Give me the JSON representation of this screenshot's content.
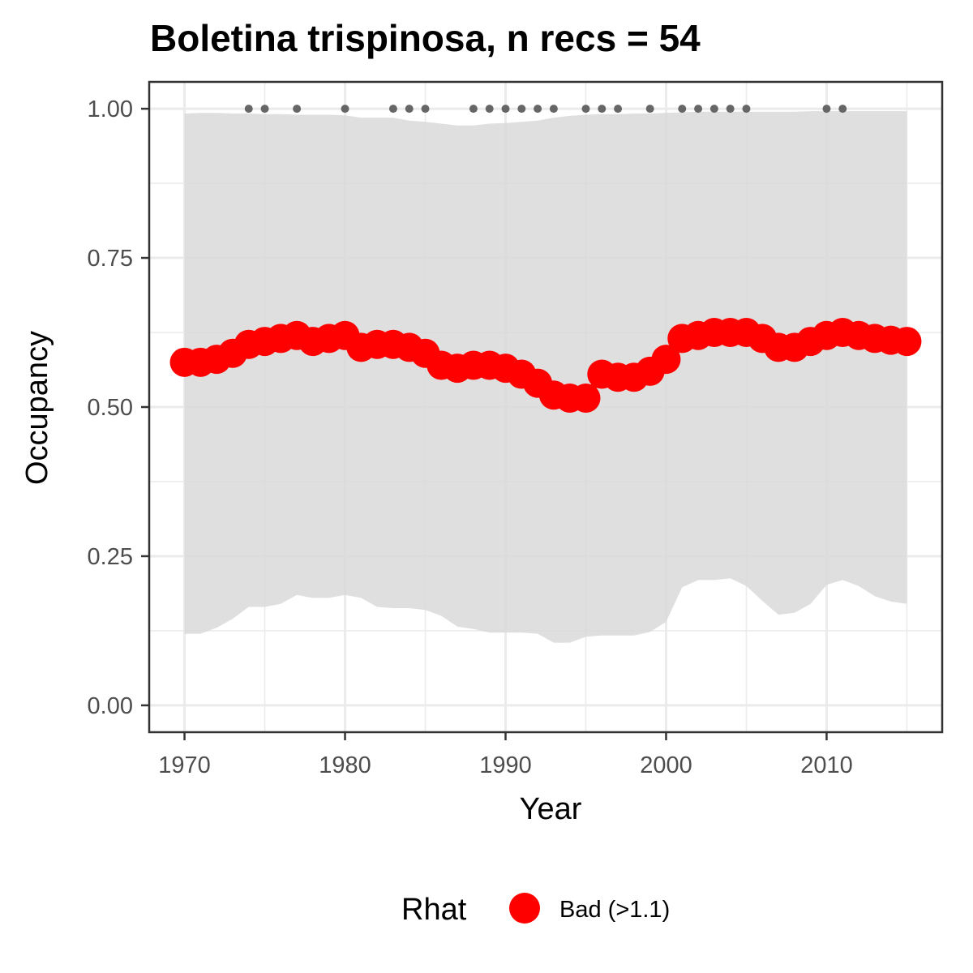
{
  "chart_data": {
    "type": "line",
    "title": "Boletina trispinosa, n recs = 54",
    "xlabel": "Year",
    "ylabel": "Occupancy",
    "xlim": [
      1967.8,
      2017.2
    ],
    "ylim": [
      -0.045,
      1.045
    ],
    "x_ticks": [
      1970,
      1980,
      1990,
      2000,
      2010
    ],
    "x_tick_labels": [
      "1970",
      "1980",
      "1990",
      "2000",
      "2010"
    ],
    "y_ticks": [
      0,
      0.25,
      0.5,
      0.75,
      1.0
    ],
    "y_tick_labels": [
      "0.00",
      "0.25",
      "0.50",
      "0.75",
      "1.00"
    ],
    "grid": true,
    "years": [
      1970,
      1971,
      1972,
      1973,
      1974,
      1975,
      1976,
      1977,
      1978,
      1979,
      1980,
      1981,
      1982,
      1983,
      1984,
      1985,
      1986,
      1987,
      1988,
      1989,
      1990,
      1991,
      1992,
      1993,
      1994,
      1995,
      1996,
      1997,
      1998,
      1999,
      2000,
      2001,
      2002,
      2003,
      2004,
      2005,
      2006,
      2007,
      2008,
      2009,
      2010,
      2011,
      2012,
      2013,
      2014,
      2015
    ],
    "occupancy": [
      0.575,
      0.575,
      0.58,
      0.59,
      0.605,
      0.61,
      0.615,
      0.62,
      0.61,
      0.615,
      0.62,
      0.6,
      0.605,
      0.605,
      0.6,
      0.59,
      0.57,
      0.565,
      0.57,
      0.57,
      0.565,
      0.555,
      0.54,
      0.52,
      0.515,
      0.515,
      0.555,
      0.55,
      0.55,
      0.56,
      0.58,
      0.615,
      0.62,
      0.625,
      0.625,
      0.625,
      0.615,
      0.6,
      0.6,
      0.61,
      0.62,
      0.625,
      0.62,
      0.615,
      0.612,
      0.61
    ],
    "ci_lower": [
      0.12,
      0.12,
      0.13,
      0.145,
      0.165,
      0.165,
      0.17,
      0.185,
      0.18,
      0.18,
      0.185,
      0.18,
      0.165,
      0.163,
      0.163,
      0.16,
      0.15,
      0.132,
      0.128,
      0.122,
      0.122,
      0.122,
      0.12,
      0.105,
      0.105,
      0.115,
      0.117,
      0.117,
      0.117,
      0.123,
      0.14,
      0.198,
      0.21,
      0.21,
      0.213,
      0.2,
      0.175,
      0.152,
      0.155,
      0.17,
      0.202,
      0.21,
      0.2,
      0.183,
      0.174,
      0.17
    ],
    "ci_upper": [
      0.992,
      0.993,
      0.993,
      0.992,
      0.992,
      0.991,
      0.991,
      0.99,
      0.99,
      0.99,
      0.989,
      0.985,
      0.985,
      0.985,
      0.98,
      0.978,
      0.975,
      0.972,
      0.972,
      0.975,
      0.976,
      0.978,
      0.98,
      0.985,
      0.988,
      0.99,
      0.991,
      0.991,
      0.992,
      0.992,
      0.993,
      0.994,
      0.995,
      0.995,
      0.995,
      0.995,
      0.995,
      0.995,
      0.995,
      0.996,
      0.996,
      0.996,
      0.996,
      0.996,
      0.996,
      0.996
    ],
    "record_years": [
      1974,
      1975,
      1977,
      1980,
      1983,
      1984,
      1985,
      1988,
      1989,
      1990,
      1991,
      1992,
      1993,
      1995,
      1996,
      1997,
      1999,
      2001,
      2002,
      2003,
      2004,
      2005,
      2010,
      2011
    ],
    "record_y": 1.0,
    "legend": {
      "title": "Rhat",
      "entries": [
        {
          "label": "Bad (>1.1)",
          "color": "#ff0000"
        }
      ],
      "position": "bottom"
    },
    "colors": {
      "line": "#ff0000",
      "ribbon": "#d9d9d9",
      "records": "#666666",
      "grid_major": "#ebebeb",
      "panel_border": "#333333"
    }
  }
}
